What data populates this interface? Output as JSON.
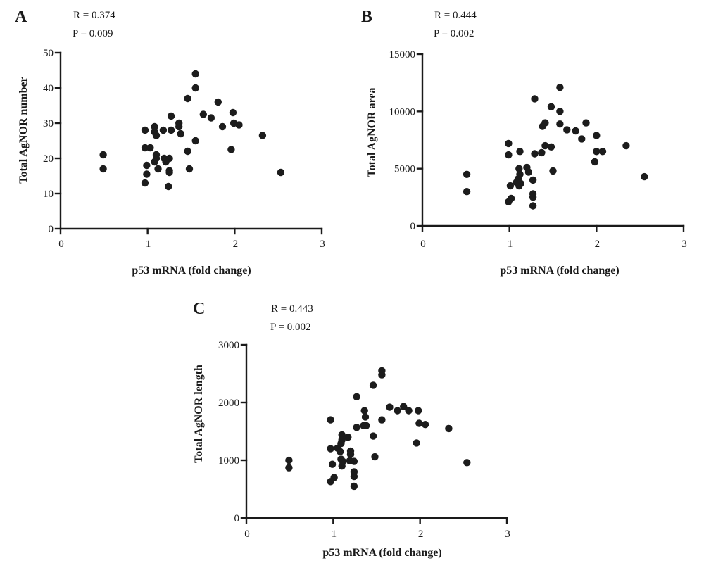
{
  "chart_data": [
    {
      "panel_label": "A",
      "type": "scatter",
      "stats": {
        "r": "R = 0.374",
        "p": "P = 0.009"
      },
      "xlabel": "p53 mRNA (fold change)",
      "ylabel": "Total AgNOR number",
      "xlim": [
        0,
        3
      ],
      "ylim": [
        0,
        50
      ],
      "xticks": [
        0,
        1,
        2,
        3
      ],
      "yticks": [
        0,
        10,
        20,
        30,
        40,
        50
      ],
      "grid": false,
      "point_color": "#1c1c1c",
      "x": [
        0.49,
        0.49,
        0.97,
        0.97,
        0.99,
        0.99,
        0.97,
        1.03,
        1.08,
        1.08,
        1.1,
        1.1,
        1.1,
        1.08,
        1.12,
        1.18,
        1.19,
        1.21,
        1.25,
        1.25,
        1.25,
        1.24,
        1.27,
        1.27,
        1.36,
        1.36,
        1.38,
        1.46,
        1.46,
        1.48,
        1.55,
        1.55,
        1.55,
        1.64,
        1.73,
        1.81,
        1.86,
        1.98,
        1.99,
        1.96,
        2.05,
        2.32,
        2.53
      ],
      "y": [
        21,
        17,
        28,
        23,
        18,
        15.5,
        13,
        23,
        29,
        27.5,
        26.5,
        21,
        20,
        19,
        17,
        28,
        20,
        19,
        20,
        16.5,
        16,
        12,
        32,
        28,
        30,
        29,
        27,
        37,
        22,
        17,
        44,
        40,
        25,
        32.5,
        31.5,
        36,
        29,
        33,
        30,
        22.5,
        29.5,
        26.5,
        16
      ]
    },
    {
      "panel_label": "B",
      "type": "scatter",
      "stats": {
        "r": "R = 0.444",
        "p": "P = 0.002"
      },
      "xlabel": "p53 mRNA (fold change)",
      "ylabel": "Total AgNOR area",
      "xlim": [
        0,
        3
      ],
      "ylim": [
        0,
        15000
      ],
      "xticks": [
        0,
        1,
        2,
        3
      ],
      "yticks": [
        0,
        5000,
        10000,
        15000
      ],
      "grid": false,
      "point_color": "#1c1c1c",
      "x": [
        0.51,
        0.51,
        0.99,
        0.99,
        1.01,
        1.02,
        0.99,
        1.08,
        1.1,
        1.12,
        1.11,
        1.12,
        1.11,
        1.13,
        1.2,
        1.22,
        1.27,
        1.27,
        1.27,
        1.27,
        1.29,
        1.29,
        1.37,
        1.38,
        1.41,
        1.41,
        1.48,
        1.48,
        1.5,
        1.58,
        1.58,
        1.58,
        1.66,
        1.76,
        1.83,
        1.88,
        2.0,
        1.98,
        2.0,
        2.07,
        2.34,
        2.55
      ],
      "y": [
        4500,
        3000,
        7200,
        6200,
        3500,
        2400,
        2100,
        3800,
        4100,
        6500,
        5000,
        4500,
        3500,
        3700,
        5100,
        4700,
        4000,
        2800,
        2500,
        1750,
        11100,
        6300,
        6400,
        8700,
        7000,
        9000,
        10400,
        6900,
        4800,
        12100,
        10000,
        8900,
        8400,
        8300,
        7600,
        9000,
        7900,
        5600,
        6500,
        6500,
        7000,
        4300
      ]
    },
    {
      "panel_label": "C",
      "type": "scatter",
      "stats": {
        "r": "R = 0.443",
        "p": "P = 0.002"
      },
      "xlabel": "p53 mRNA (fold change)",
      "ylabel": "Total AgNOR length",
      "xlim": [
        0,
        3
      ],
      "ylim": [
        0,
        3000
      ],
      "xticks": [
        0,
        1,
        2,
        3
      ],
      "yticks": [
        0,
        1000,
        2000,
        3000
      ],
      "grid": false,
      "point_color": "#1c1c1c",
      "x": [
        0.49,
        0.49,
        0.97,
        0.97,
        0.99,
        0.97,
        1.01,
        1.05,
        1.08,
        1.1,
        1.1,
        1.09,
        1.09,
        1.1,
        1.11,
        1.17,
        1.2,
        1.2,
        1.19,
        1.24,
        1.24,
        1.24,
        1.24,
        1.27,
        1.27,
        1.36,
        1.37,
        1.35,
        1.38,
        1.46,
        1.46,
        1.48,
        1.56,
        1.56,
        1.56,
        1.65,
        1.74,
        1.81,
        1.87,
        1.98,
        1.96,
        1.99,
        2.06,
        2.33,
        2.54
      ],
      "y": [
        1000,
        870,
        1700,
        1200,
        930,
        630,
        700,
        1210,
        1150,
        1440,
        1350,
        1290,
        1020,
        900,
        980,
        1400,
        1160,
        1100,
        990,
        980,
        800,
        720,
        550,
        2100,
        1570,
        1860,
        1750,
        1600,
        1600,
        2300,
        1420,
        1060,
        2550,
        2480,
        1700,
        1920,
        1860,
        1930,
        1860,
        1860,
        1300,
        1640,
        1620,
        1550,
        960
      ]
    }
  ]
}
